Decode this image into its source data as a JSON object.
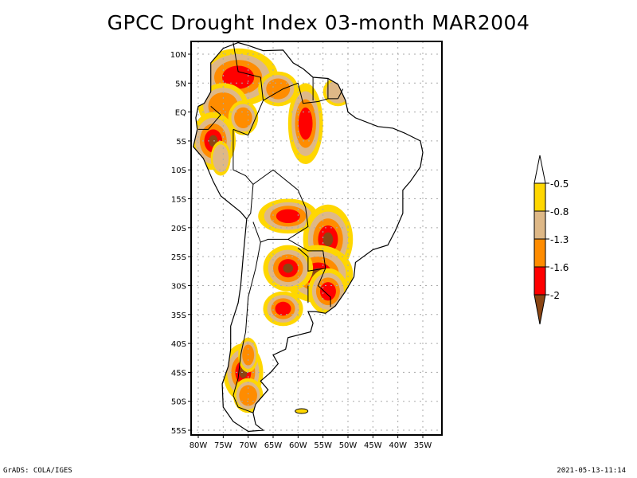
{
  "title": "GPCC Drought Index 03-month MAR2004",
  "footer": {
    "left": "GrADS: COLA/IGES",
    "right": "2021-05-13-11:14"
  },
  "map": {
    "region": "South America",
    "lon_range": [
      -81.5,
      -31
    ],
    "lat_range": [
      12,
      -56
    ],
    "x_ticks": [
      {
        "lon": -80,
        "label": "80W"
      },
      {
        "lon": -75,
        "label": "75W"
      },
      {
        "lon": -70,
        "label": "70W"
      },
      {
        "lon": -65,
        "label": "65W"
      },
      {
        "lon": -60,
        "label": "60W"
      },
      {
        "lon": -55,
        "label": "55W"
      },
      {
        "lon": -50,
        "label": "50W"
      },
      {
        "lon": -45,
        "label": "45W"
      },
      {
        "lon": -40,
        "label": "40W"
      },
      {
        "lon": -35,
        "label": "35W"
      }
    ],
    "y_ticks": [
      {
        "lat": 10,
        "label": "10N"
      },
      {
        "lat": 5,
        "label": "5N"
      },
      {
        "lat": 0,
        "label": "EQ"
      },
      {
        "lat": -5,
        "label": "5S"
      },
      {
        "lat": -10,
        "label": "10S"
      },
      {
        "lat": -15,
        "label": "15S"
      },
      {
        "lat": -20,
        "label": "20S"
      },
      {
        "lat": -25,
        "label": "25S"
      },
      {
        "lat": -30,
        "label": "30S"
      },
      {
        "lat": -35,
        "label": "35S"
      },
      {
        "lat": -40,
        "label": "40S"
      },
      {
        "lat": -45,
        "label": "45S"
      },
      {
        "lat": -50,
        "label": "50S"
      },
      {
        "lat": -55,
        "label": "55S"
      }
    ],
    "grid": true
  },
  "colorbar": {
    "levels": [
      {
        "label": "-0.5",
        "color": "#ffd700"
      },
      {
        "label": "-0.8",
        "color": "#deb887"
      },
      {
        "label": "-1.3",
        "color": "#ff8c00"
      },
      {
        "label": "-1.6",
        "color": "#ff0000"
      },
      {
        "label": "-2",
        "color": "#8b4513"
      }
    ],
    "top_arrow_color": "#ffffff",
    "bottom_arrow_color": "#8b4513"
  },
  "drought_regions": [
    {
      "name": "northwest-colombia-venezuela",
      "lon": -70,
      "lat": 6,
      "severity": -1.6
    },
    {
      "name": "ecuador-peru-north",
      "lon": -77,
      "lat": -5,
      "severity": -2
    },
    {
      "name": "amazon-central",
      "lon": -58,
      "lat": -5,
      "severity": -1.6
    },
    {
      "name": "bolivia-east",
      "lon": -62,
      "lat": -17,
      "severity": -1.6
    },
    {
      "name": "southern-brazil",
      "lon": -54,
      "lat": -22,
      "severity": -2
    },
    {
      "name": "argentina-northeast",
      "lon": -60,
      "lat": -28,
      "severity": -2
    },
    {
      "name": "uruguay",
      "lon": -55,
      "lat": -32,
      "severity": -1.6
    },
    {
      "name": "patagonia",
      "lon": -70,
      "lat": -46,
      "severity": -2
    }
  ]
}
